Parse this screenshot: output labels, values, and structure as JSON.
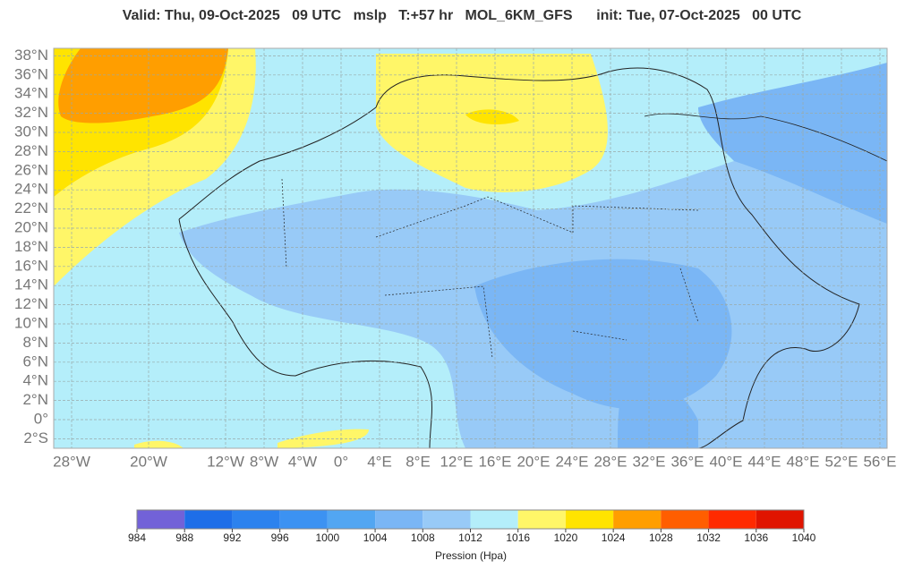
{
  "header": {
    "title": "Valid: Thu, 09-Oct-2025   09 UTC   mslp   T:+57 hr   MOL_6KM_GFS      init: Tue, 07-Oct-2025   00 UTC"
  },
  "map": {
    "lat_labels": [
      "38°N",
      "36°N",
      "34°N",
      "32°N",
      "30°N",
      "28°N",
      "26°N",
      "24°N",
      "22°N",
      "20°N",
      "18°N",
      "16°N",
      "14°N",
      "12°N",
      "10°N",
      "8°N",
      "6°N",
      "4°N",
      "2°N",
      "0°",
      "2°S"
    ],
    "lon_labels": [
      "28°W",
      "20°W",
      "12°W",
      "8°W",
      "4°W",
      "0°",
      "4°E",
      "8°E",
      "12°E",
      "16°E",
      "20°E",
      "24°E",
      "28°E",
      "32°E",
      "36°E",
      "40°E",
      "44°E",
      "48°E",
      "52°E",
      "56°E"
    ]
  },
  "colorbar": {
    "ticks": [
      984,
      988,
      992,
      996,
      1000,
      1004,
      1008,
      1012,
      1016,
      1020,
      1024,
      1028,
      1032,
      1036,
      1040
    ],
    "colors": [
      "#7262d8",
      "#1e6ee8",
      "#2c82ee",
      "#3c92f2",
      "#52a6f2",
      "#7ab6f5",
      "#98caf7",
      "#b4eefa",
      "#fff668",
      "#ffe400",
      "#ff9e00",
      "#ff5e00",
      "#ff2a00",
      "#e01400"
    ],
    "label": "Pression (Hpa)"
  }
}
